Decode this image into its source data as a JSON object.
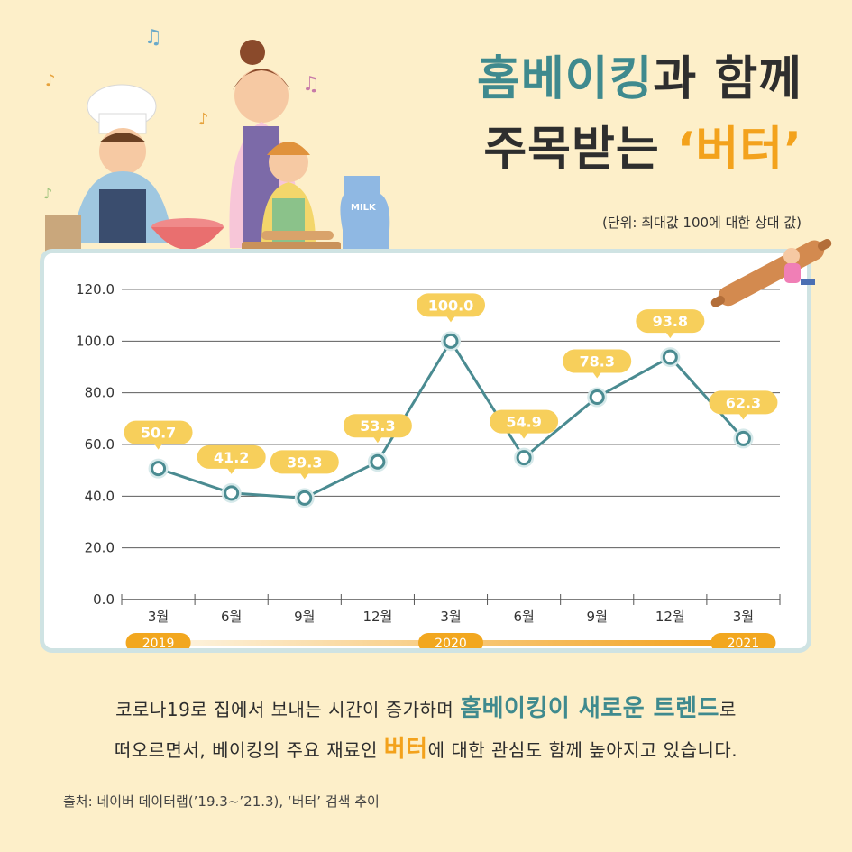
{
  "header": {
    "title_line1_highlight": "홈베이킹",
    "title_line1_rest": "과 함께",
    "title_line2_prefix": "주목받는 ",
    "title_line2_highlight": "‘버터’"
  },
  "unit_note": "(단위: 최대값 100에 대한 상대 값)",
  "chart_data": {
    "type": "line",
    "categories": [
      "3월",
      "6월",
      "9월",
      "12월",
      "3월",
      "6월",
      "9월",
      "12월",
      "3월"
    ],
    "values": [
      50.7,
      41.2,
      39.3,
      53.3,
      100.0,
      54.9,
      78.3,
      93.8,
      62.3
    ],
    "data_labels": [
      "50.7",
      "41.2",
      "39.3",
      "53.3",
      "100.0",
      "54.9",
      "78.3",
      "93.8",
      "62.3"
    ],
    "y_ticks": [
      "120.0",
      "100.0",
      "80.0",
      "60.0",
      "40.0",
      "20.0",
      "0.0"
    ],
    "ylim": [
      0,
      120
    ],
    "years": [
      "2019",
      "2020",
      "2021"
    ],
    "grid": true,
    "line_color": "#4a8b91",
    "label_color": "#f7cf5b"
  },
  "description": {
    "line1_prefix": "코로나19로 집에서 보내는 시간이 증가하며 ",
    "line1_highlight": "홈베이킹이 새로운 트렌드",
    "line1_suffix": "로",
    "line2_prefix": "떠오르면서,  베이킹의 주요 재료인 ",
    "line2_highlight": "버터",
    "line2_suffix": "에 대한 관심도 함께 높아지고 있습니다."
  },
  "source": "출처: 네이버 데이터랩(’19.3~’21.3), ‘버터’ 검색 추이",
  "illustration": {
    "milk_label": "MILK"
  }
}
